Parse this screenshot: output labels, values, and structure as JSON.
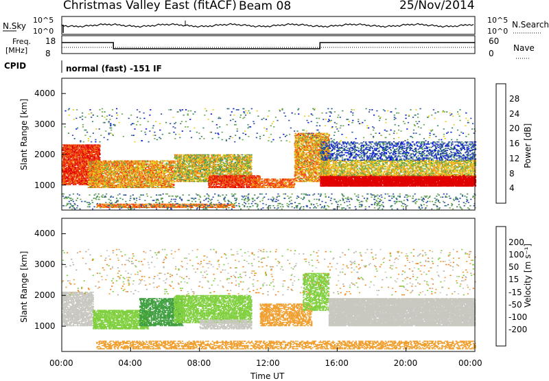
{
  "header": {
    "radar": "Christmas Valley East (fitACF)",
    "beam": "Beam 08",
    "date": "25/Nov/2014"
  },
  "status": {
    "nsky_label": "N.Sky",
    "nsearch_label": "N.Search",
    "nsky_ticks": [
      "10^5",
      "10^0"
    ],
    "nsearch_ticks": [
      "10^5",
      "10^0"
    ],
    "freq_label": "Freq.",
    "freq_unit": "[MHz]",
    "freq_ticks": [
      "18",
      "8"
    ],
    "nave_label": "Nave",
    "nave_ticks": [
      "60",
      "0"
    ],
    "cpid_label": "CPID",
    "cpid_text": "normal (fast) -151 IF"
  },
  "colors": {
    "power": [
      "#0010e0",
      "#2a4aa6",
      "#3a8a5a",
      "#6aa84a",
      "#e8d020",
      "#f0a020",
      "#f07010",
      "#f03010",
      "#e00000"
    ],
    "velocity": [
      "#e00000",
      "#f05010",
      "#f08020",
      "#f0a030",
      "#c8c8c0",
      "#b0b0a8",
      "#80d040",
      "#40a040",
      "#2a6aa0",
      "#1a2aa0"
    ]
  },
  "chart_data": [
    {
      "type": "heatmap",
      "panel": "power",
      "ylabel": "Slant Range [km]",
      "xlabel": "Time UT",
      "x_ticks": [
        "00:00",
        "04:00",
        "08:00",
        "12:00",
        "16:00",
        "20:00",
        "00:00"
      ],
      "y_ticks": [
        "1000",
        "2000",
        "3000",
        "4000"
      ],
      "ylim": [
        180,
        4500
      ],
      "colorbar_label": "Power [dB]",
      "colorbar_ticks": [
        "4",
        "8",
        "12",
        "16",
        "20",
        "24",
        "28"
      ],
      "colorbar_range": [
        0,
        32
      ]
    },
    {
      "type": "heatmap",
      "panel": "velocity",
      "ylabel": "Slant Range [km]",
      "xlabel": "Time UT",
      "x_ticks": [
        "00:00",
        "04:00",
        "08:00",
        "12:00",
        "16:00",
        "20:00",
        "00:00"
      ],
      "y_ticks": [
        "1000",
        "2000",
        "3000",
        "4000"
      ],
      "ylim": [
        180,
        4500
      ],
      "colorbar_label": "Velocity [m s⁻¹]",
      "colorbar_ticks": [
        "-200",
        "-100",
        "-50",
        "-15",
        "15",
        "50",
        "100",
        "200"
      ],
      "colorbar_range": [
        -250,
        250
      ]
    }
  ],
  "time_axis_label": "Time UT"
}
